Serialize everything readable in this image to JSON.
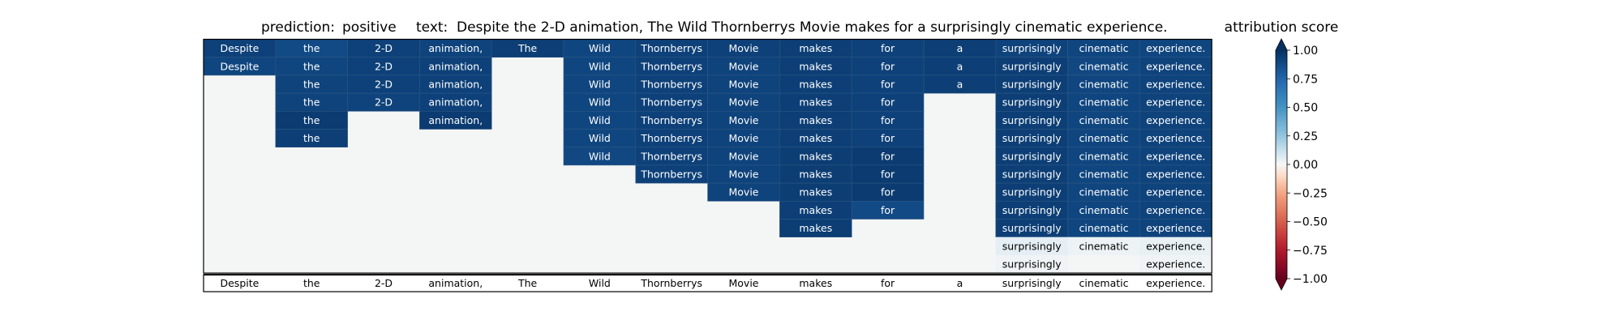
{
  "header": {
    "prediction_label": "prediction:",
    "prediction_value": "positive",
    "text_label": "text:",
    "text_value": "Despite the 2-D animation, The Wild Thornberrys Movie makes for a surprisingly cinematic experience.",
    "colorbar_title": "attribution score"
  },
  "chart_data": {
    "type": "heatmap",
    "title": "prediction: positive text: Despite the 2-D animation, The Wild Thornberrys Movie makes for a surprisingly cinematic experience.",
    "tokens": [
      "Despite",
      "the",
      "2-D",
      "animation,",
      "The",
      "Wild",
      "Thornberrys",
      "Movie",
      "makes",
      "for",
      "a",
      "surprisingly",
      "cinematic",
      "experience."
    ],
    "active_rows_per_column": [
      2,
      6,
      4,
      5,
      1,
      7,
      8,
      9,
      11,
      10,
      3,
      13,
      12,
      13
    ],
    "scores": [
      [
        0.92,
        0.88,
        0.92,
        0.91,
        0.93,
        0.9,
        0.92,
        0.92,
        0.93,
        0.92,
        0.93,
        0.91,
        0.9,
        0.9
      ],
      [
        0.9,
        0.9,
        0.92,
        0.92,
        null,
        0.9,
        0.92,
        0.91,
        0.93,
        0.92,
        0.93,
        0.93,
        0.89,
        0.91
      ],
      [
        null,
        0.91,
        0.92,
        0.92,
        null,
        0.9,
        0.92,
        0.91,
        0.93,
        0.92,
        0.93,
        0.93,
        0.9,
        0.91
      ],
      [
        null,
        0.91,
        0.91,
        0.92,
        null,
        0.9,
        0.92,
        0.91,
        0.93,
        0.92,
        null,
        0.93,
        0.9,
        0.91
      ],
      [
        null,
        0.95,
        null,
        0.95,
        null,
        0.9,
        0.92,
        0.91,
        0.93,
        0.92,
        null,
        0.93,
        0.9,
        0.91
      ],
      [
        null,
        0.93,
        null,
        null,
        null,
        0.9,
        0.92,
        0.91,
        0.93,
        0.92,
        null,
        0.93,
        0.9,
        0.91
      ],
      [
        null,
        null,
        null,
        null,
        null,
        0.89,
        0.92,
        0.91,
        0.94,
        0.95,
        null,
        0.93,
        0.9,
        0.91
      ],
      [
        null,
        null,
        null,
        null,
        null,
        null,
        0.92,
        0.91,
        0.94,
        0.95,
        null,
        0.93,
        0.9,
        0.91
      ],
      [
        null,
        null,
        null,
        null,
        null,
        null,
        null,
        0.91,
        0.94,
        0.95,
        null,
        0.93,
        0.9,
        0.91
      ],
      [
        null,
        null,
        null,
        null,
        null,
        null,
        null,
        null,
        0.93,
        0.88,
        null,
        0.93,
        0.9,
        0.91
      ],
      [
        null,
        null,
        null,
        null,
        null,
        null,
        null,
        null,
        0.94,
        null,
        null,
        0.93,
        0.9,
        0.91
      ],
      [
        null,
        null,
        null,
        null,
        null,
        null,
        null,
        null,
        null,
        null,
        null,
        0.05,
        0.03,
        0.04
      ],
      [
        null,
        null,
        null,
        null,
        null,
        null,
        null,
        null,
        null,
        null,
        null,
        0.02,
        null,
        0.02
      ]
    ],
    "colorbar": {
      "label": "attribution score",
      "range": [
        -1.0,
        1.0
      ],
      "ticks": [
        1.0,
        0.75,
        0.5,
        0.25,
        0.0,
        -0.25,
        -0.5,
        -0.75,
        -1.0
      ],
      "tick_labels": [
        "1.00",
        "0.75",
        "0.50",
        "0.25",
        "0.00",
        "−0.25",
        "−0.50",
        "−0.75",
        "−1.00"
      ],
      "extend": "both",
      "colormap": "RdBu"
    },
    "colors": {
      "empty_cell": "#f4f5f5",
      "grid_line": "#2c5783",
      "border": "#000000",
      "text_dark_bg": "#ffffff",
      "text_light_bg": "#000000"
    }
  }
}
